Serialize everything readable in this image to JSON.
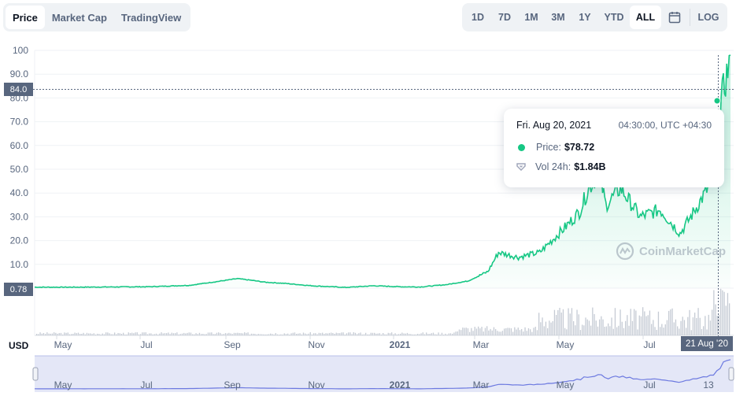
{
  "toolbar_left": [
    {
      "label": "Price",
      "active": true
    },
    {
      "label": "Market Cap",
      "active": false
    },
    {
      "label": "TradingView",
      "active": false
    }
  ],
  "toolbar_right": {
    "ranges": [
      "1D",
      "7D",
      "1M",
      "3M",
      "1Y",
      "YTD",
      "ALL"
    ],
    "active_range": "ALL",
    "calendar_icon": "calendar-icon",
    "log_label": "LOG"
  },
  "currency_label": "USD",
  "y_ticks": [
    "100",
    "90.0",
    "80.0",
    "70.0",
    "60.0",
    "50.0",
    "40.0",
    "30.0",
    "20.0",
    "10.0"
  ],
  "crosshair_price": "84.0",
  "current_price_label": "0.78",
  "x_ticks": [
    "May",
    "Jul",
    "Sep",
    "Nov",
    "2021",
    "Mar",
    "May",
    "Jul"
  ],
  "crosshair_date": "21 Aug '20",
  "navigator_ticks": [
    "May",
    "Jul",
    "Sep",
    "Nov",
    "2021",
    "Mar",
    "May",
    "Jul",
    "13"
  ],
  "tooltip": {
    "date": "Fri. Aug 20, 2021",
    "time": "04:30:00, UTC +04:30",
    "price_label": "Price:",
    "price_value": "$78.72",
    "volume_label": "Vol 24h:",
    "volume_value": "$1.84B"
  },
  "watermark": "CoinMarketCap",
  "colors": {
    "line": "#16c784",
    "accent": "#58667e",
    "volume": "#c5cbd4",
    "navigator": "#6c79e0"
  },
  "chart_data": {
    "type": "line",
    "ylim": [
      0,
      100
    ],
    "series": [
      {
        "x": [
          "2020-03-20",
          "2020-04-15",
          "2020-05-15",
          "2020-06-15",
          "2020-07-15",
          "2020-08-05",
          "2020-08-20",
          "2020-09-01",
          "2020-09-10",
          "2020-09-25",
          "2020-10-15",
          "2020-11-10",
          "2020-12-01",
          "2020-12-20",
          "2021-01-05",
          "2021-01-25",
          "2021-02-10",
          "2021-02-25",
          "2021-03-05",
          "2021-03-20",
          "2021-04-05",
          "2021-04-25",
          "2021-05-05",
          "2021-05-12",
          "2021-05-20",
          "2021-05-25",
          "2021-06-05",
          "2021-06-20",
          "2021-07-05",
          "2021-07-20",
          "2021-07-28",
          "2021-08-10",
          "2021-08-15",
          "2021-08-20",
          "2021-08-25",
          "2021-08-27"
        ],
        "values": [
          0.4,
          0.4,
          0.5,
          0.6,
          1.2,
          2.8,
          4.0,
          3.2,
          2.5,
          2.0,
          1.0,
          0.3,
          1.0,
          0.6,
          0.5,
          1.5,
          3.0,
          7.0,
          15.0,
          13.0,
          15.0,
          26.0,
          32.0,
          42.0,
          48.0,
          35.0,
          42.0,
          30.0,
          33.0,
          23.0,
          30.0,
          42.0,
          48.0,
          78.72,
          92.0,
          98.0
        ]
      }
    ]
  }
}
